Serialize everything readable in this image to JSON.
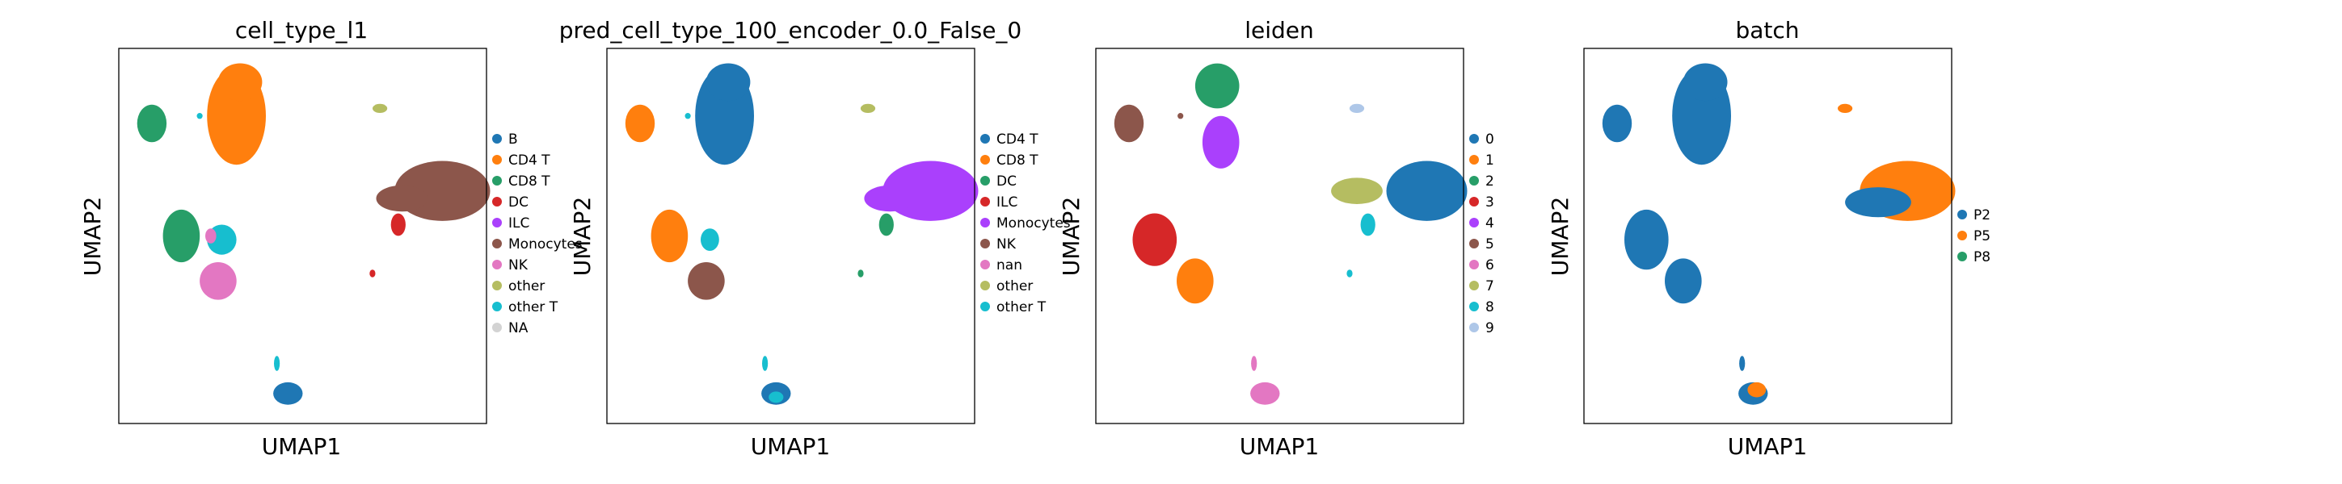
{
  "chart_data": [
    {
      "type": "scatter",
      "title": "cell_type_l1",
      "xlabel": "UMAP1",
      "ylabel": "UMAP2",
      "grid": false,
      "legend_position": "right",
      "legend": [
        {
          "label": "B",
          "color": "#1f77b4"
        },
        {
          "label": "CD4 T",
          "color": "#ff7f0e"
        },
        {
          "label": "CD8 T",
          "color": "#279e68"
        },
        {
          "label": "DC",
          "color": "#d62728"
        },
        {
          "label": "ILC",
          "color": "#aa40fc"
        },
        {
          "label": "Monocytes",
          "color": "#8c564b"
        },
        {
          "label": "NK",
          "color": "#e377c2"
        },
        {
          "label": "other",
          "color": "#b5bd61"
        },
        {
          "label": "other T",
          "color": "#17becf"
        },
        {
          "label": "NA",
          "color": "#d3d3d3"
        }
      ],
      "clusters": [
        {
          "color": "#ff7f0e",
          "x": 0.32,
          "y": 0.82,
          "rx": 0.08,
          "ry": 0.13
        },
        {
          "color": "#ff7f0e",
          "x": 0.33,
          "y": 0.91,
          "rx": 0.06,
          "ry": 0.05
        },
        {
          "color": "#279e68",
          "x": 0.09,
          "y": 0.8,
          "rx": 0.04,
          "ry": 0.05
        },
        {
          "color": "#17becf",
          "x": 0.22,
          "y": 0.82,
          "rx": 0.008,
          "ry": 0.008
        },
        {
          "color": "#b5bd61",
          "x": 0.71,
          "y": 0.84,
          "rx": 0.02,
          "ry": 0.012
        },
        {
          "color": "#8c564b",
          "x": 0.88,
          "y": 0.62,
          "rx": 0.13,
          "ry": 0.08
        },
        {
          "color": "#8c564b",
          "x": 0.77,
          "y": 0.6,
          "rx": 0.07,
          "ry": 0.035
        },
        {
          "color": "#d62728",
          "x": 0.76,
          "y": 0.53,
          "rx": 0.02,
          "ry": 0.03
        },
        {
          "color": "#279e68",
          "x": 0.17,
          "y": 0.5,
          "rx": 0.05,
          "ry": 0.07
        },
        {
          "color": "#17becf",
          "x": 0.28,
          "y": 0.49,
          "rx": 0.04,
          "ry": 0.04
        },
        {
          "color": "#e377c2",
          "x": 0.27,
          "y": 0.38,
          "rx": 0.05,
          "ry": 0.05
        },
        {
          "color": "#e377c2",
          "x": 0.25,
          "y": 0.5,
          "rx": 0.015,
          "ry": 0.02
        },
        {
          "color": "#d62728",
          "x": 0.69,
          "y": 0.4,
          "rx": 0.008,
          "ry": 0.01
        },
        {
          "color": "#17becf",
          "x": 0.43,
          "y": 0.16,
          "rx": 0.008,
          "ry": 0.02
        },
        {
          "color": "#1f77b4",
          "x": 0.46,
          "y": 0.08,
          "rx": 0.04,
          "ry": 0.03
        }
      ]
    },
    {
      "type": "scatter",
      "title": "pred_cell_type_100_encoder_0.0_False_0",
      "xlabel": "UMAP1",
      "ylabel": "UMAP2",
      "grid": false,
      "legend_position": "right",
      "legend": [
        {
          "label": "CD4 T",
          "color": "#1f77b4"
        },
        {
          "label": "CD8 T",
          "color": "#ff7f0e"
        },
        {
          "label": "DC",
          "color": "#279e68"
        },
        {
          "label": "ILC",
          "color": "#d62728"
        },
        {
          "label": "Monocytes",
          "color": "#aa40fc"
        },
        {
          "label": "NK",
          "color": "#8c564b"
        },
        {
          "label": "nan",
          "color": "#e377c2"
        },
        {
          "label": "other",
          "color": "#b5bd61"
        },
        {
          "label": "other T",
          "color": "#17becf"
        }
      ],
      "clusters": [
        {
          "color": "#1f77b4",
          "x": 0.32,
          "y": 0.82,
          "rx": 0.08,
          "ry": 0.13
        },
        {
          "color": "#1f77b4",
          "x": 0.33,
          "y": 0.91,
          "rx": 0.06,
          "ry": 0.05
        },
        {
          "color": "#ff7f0e",
          "x": 0.09,
          "y": 0.8,
          "rx": 0.04,
          "ry": 0.05
        },
        {
          "color": "#17becf",
          "x": 0.22,
          "y": 0.82,
          "rx": 0.008,
          "ry": 0.008
        },
        {
          "color": "#b5bd61",
          "x": 0.71,
          "y": 0.84,
          "rx": 0.02,
          "ry": 0.012
        },
        {
          "color": "#aa40fc",
          "x": 0.88,
          "y": 0.62,
          "rx": 0.13,
          "ry": 0.08
        },
        {
          "color": "#aa40fc",
          "x": 0.77,
          "y": 0.6,
          "rx": 0.07,
          "ry": 0.035
        },
        {
          "color": "#279e68",
          "x": 0.76,
          "y": 0.53,
          "rx": 0.02,
          "ry": 0.03
        },
        {
          "color": "#ff7f0e",
          "x": 0.17,
          "y": 0.5,
          "rx": 0.05,
          "ry": 0.07
        },
        {
          "color": "#17becf",
          "x": 0.28,
          "y": 0.49,
          "rx": 0.025,
          "ry": 0.03
        },
        {
          "color": "#8c564b",
          "x": 0.27,
          "y": 0.38,
          "rx": 0.05,
          "ry": 0.05
        },
        {
          "color": "#279e68",
          "x": 0.69,
          "y": 0.4,
          "rx": 0.008,
          "ry": 0.01
        },
        {
          "color": "#17becf",
          "x": 0.43,
          "y": 0.16,
          "rx": 0.008,
          "ry": 0.02
        },
        {
          "color": "#1f77b4",
          "x": 0.46,
          "y": 0.08,
          "rx": 0.04,
          "ry": 0.03
        },
        {
          "color": "#17becf",
          "x": 0.46,
          "y": 0.07,
          "rx": 0.02,
          "ry": 0.015
        }
      ]
    },
    {
      "type": "scatter",
      "title": "leiden",
      "xlabel": "UMAP1",
      "ylabel": "UMAP2",
      "grid": false,
      "legend_position": "right",
      "legend": [
        {
          "label": "0",
          "color": "#1f77b4"
        },
        {
          "label": "1",
          "color": "#ff7f0e"
        },
        {
          "label": "2",
          "color": "#279e68"
        },
        {
          "label": "3",
          "color": "#d62728"
        },
        {
          "label": "4",
          "color": "#aa40fc"
        },
        {
          "label": "5",
          "color": "#8c564b"
        },
        {
          "label": "6",
          "color": "#e377c2"
        },
        {
          "label": "7",
          "color": "#b5bd61"
        },
        {
          "label": "8",
          "color": "#17becf"
        },
        {
          "label": "9",
          "color": "#aec7e8"
        }
      ],
      "clusters": [
        {
          "color": "#279e68",
          "x": 0.33,
          "y": 0.9,
          "rx": 0.06,
          "ry": 0.06
        },
        {
          "color": "#aa40fc",
          "x": 0.34,
          "y": 0.75,
          "rx": 0.05,
          "ry": 0.07
        },
        {
          "color": "#8c564b",
          "x": 0.09,
          "y": 0.8,
          "rx": 0.04,
          "ry": 0.05
        },
        {
          "color": "#8c564b",
          "x": 0.23,
          "y": 0.82,
          "rx": 0.008,
          "ry": 0.008
        },
        {
          "color": "#aec7e8",
          "x": 0.71,
          "y": 0.84,
          "rx": 0.02,
          "ry": 0.012
        },
        {
          "color": "#1f77b4",
          "x": 0.9,
          "y": 0.62,
          "rx": 0.11,
          "ry": 0.08
        },
        {
          "color": "#b5bd61",
          "x": 0.71,
          "y": 0.62,
          "rx": 0.07,
          "ry": 0.035
        },
        {
          "color": "#17becf",
          "x": 0.74,
          "y": 0.53,
          "rx": 0.02,
          "ry": 0.03
        },
        {
          "color": "#d62728",
          "x": 0.16,
          "y": 0.49,
          "rx": 0.06,
          "ry": 0.07
        },
        {
          "color": "#ff7f0e",
          "x": 0.27,
          "y": 0.38,
          "rx": 0.05,
          "ry": 0.06
        },
        {
          "color": "#17becf",
          "x": 0.69,
          "y": 0.4,
          "rx": 0.008,
          "ry": 0.01
        },
        {
          "color": "#e377c2",
          "x": 0.43,
          "y": 0.16,
          "rx": 0.008,
          "ry": 0.02
        },
        {
          "color": "#e377c2",
          "x": 0.46,
          "y": 0.08,
          "rx": 0.04,
          "ry": 0.03
        }
      ]
    },
    {
      "type": "scatter",
      "title": "batch",
      "xlabel": "UMAP1",
      "ylabel": "UMAP2",
      "grid": false,
      "legend_position": "right",
      "legend": [
        {
          "label": "P2",
          "color": "#1f77b4"
        },
        {
          "label": "P5",
          "color": "#ff7f0e"
        },
        {
          "label": "P8",
          "color": "#279e68"
        }
      ],
      "clusters": [
        {
          "color": "#1f77b4",
          "x": 0.32,
          "y": 0.82,
          "rx": 0.08,
          "ry": 0.13
        },
        {
          "color": "#1f77b4",
          "x": 0.33,
          "y": 0.91,
          "rx": 0.06,
          "ry": 0.05
        },
        {
          "color": "#1f77b4",
          "x": 0.09,
          "y": 0.8,
          "rx": 0.04,
          "ry": 0.05
        },
        {
          "color": "#ff7f0e",
          "x": 0.71,
          "y": 0.84,
          "rx": 0.02,
          "ry": 0.012
        },
        {
          "color": "#ff7f0e",
          "x": 0.88,
          "y": 0.62,
          "rx": 0.13,
          "ry": 0.08
        },
        {
          "color": "#1f77b4",
          "x": 0.8,
          "y": 0.59,
          "rx": 0.09,
          "ry": 0.04
        },
        {
          "color": "#1f77b4",
          "x": 0.17,
          "y": 0.49,
          "rx": 0.06,
          "ry": 0.08
        },
        {
          "color": "#1f77b4",
          "x": 0.27,
          "y": 0.38,
          "rx": 0.05,
          "ry": 0.06
        },
        {
          "color": "#1f77b4",
          "x": 0.43,
          "y": 0.16,
          "rx": 0.008,
          "ry": 0.02
        },
        {
          "color": "#1f77b4",
          "x": 0.46,
          "y": 0.08,
          "rx": 0.04,
          "ry": 0.03
        },
        {
          "color": "#ff7f0e",
          "x": 0.47,
          "y": 0.09,
          "rx": 0.025,
          "ry": 0.02
        }
      ]
    }
  ]
}
